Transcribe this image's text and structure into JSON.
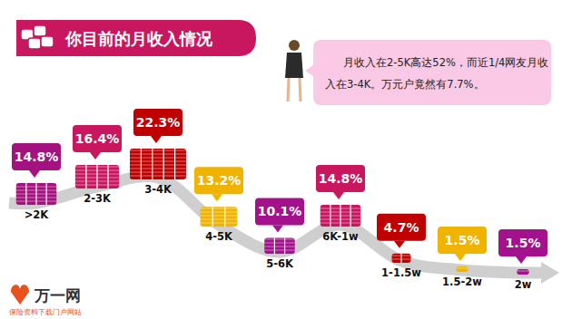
{
  "chart_data": {
    "type": "bar",
    "title": "你目前的月收入情况",
    "annotation": "月收入在2-5K高达52%，而近1/4网友月收入在3-4K。万元户竟然有7.7%。",
    "logo": "万一网",
    "logo_subtitle": "保险资料下载门户网站",
    "categories": [
      ">2K",
      "2-3K",
      "3-4K",
      "4-5K",
      "5-6K",
      "6K-1w",
      "1-1.5w",
      "1.5-2w",
      "2w"
    ],
    "values": [
      14.8,
      16.4,
      22.3,
      13.2,
      10.1,
      14.8,
      4.7,
      1.5,
      1.5
    ],
    "value_labels": [
      "14.8%",
      "16.4%",
      "22.3%",
      "13.2%",
      "10.1%",
      "14.8%",
      "4.7%",
      "1.5%",
      "1.5%"
    ],
    "colors": [
      "#a3127f",
      "#c8175f",
      "#c00000",
      "#f0b400",
      "#a3128c",
      "#c8175f",
      "#c00000",
      "#f0b400",
      "#a3128c"
    ],
    "data_labels": true,
    "tick_labels": "x"
  }
}
